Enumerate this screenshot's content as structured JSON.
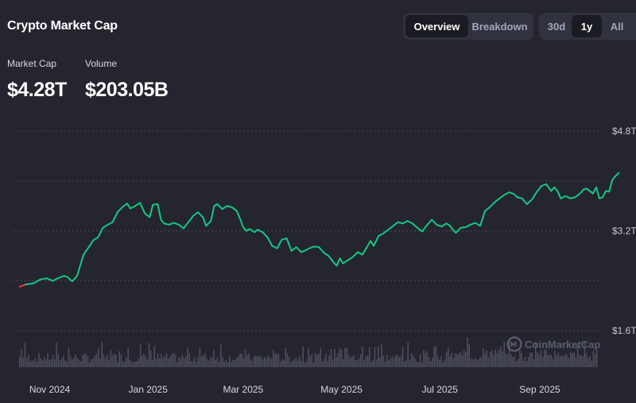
{
  "header": {
    "title": "Crypto Market Cap",
    "view_tabs": [
      {
        "label": "Overview",
        "active": true
      },
      {
        "label": "Breakdown",
        "active": false
      }
    ],
    "range_tabs": [
      {
        "label": "30d",
        "active": false
      },
      {
        "label": "1y",
        "active": true
      },
      {
        "label": "All",
        "active": false
      }
    ]
  },
  "stats": {
    "market_cap_label": "Market Cap",
    "market_cap_value": "$4.28T",
    "volume_label": "Volume",
    "volume_value": "$203.05B"
  },
  "watermark": "CoinMarketCap",
  "colors": {
    "background": "#24252f",
    "line": "#16c784",
    "line_start": "#ea3943",
    "volume": "#4b4e5b",
    "grid": "#4a4d5a",
    "watermark": "#5a5e6d"
  },
  "chart_data": {
    "type": "line",
    "title": "",
    "xlabel": "",
    "ylabel": "",
    "x_tick_labels": [
      "Nov 2024",
      "Jan 2025",
      "Mar 2025",
      "May 2025",
      "Jul 2025",
      "Sep 2025"
    ],
    "x_tick_dates": [
      "2024-11-01",
      "2025-01-01",
      "2025-03-01",
      "2025-05-01",
      "2025-07-01",
      "2025-09-01"
    ],
    "y_tick_labels": [
      "$4.8T",
      "$3.2T",
      "$1.6T"
    ],
    "y_tick_values": [
      4.8,
      3.2,
      1.6
    ],
    "ylim": [
      1.6,
      4.8
    ],
    "xlim": [
      "2024-10-13",
      "2025-10-07"
    ],
    "grid": true,
    "series": [
      {
        "unit": "trillion USD",
        "points": [
          [
            "2024-10-13",
            2.3
          ],
          [
            "2024-10-17",
            2.34
          ],
          [
            "2024-10-22",
            2.36
          ],
          [
            "2024-10-26",
            2.42
          ],
          [
            "2024-10-30",
            2.44
          ],
          [
            "2024-11-03",
            2.4
          ],
          [
            "2024-11-06",
            2.44
          ],
          [
            "2024-11-10",
            2.48
          ],
          [
            "2024-11-12",
            2.46
          ],
          [
            "2024-11-15",
            2.39
          ],
          [
            "2024-11-18",
            2.48
          ],
          [
            "2024-11-22",
            2.82
          ],
          [
            "2024-11-25",
            2.93
          ],
          [
            "2024-11-28",
            3.05
          ],
          [
            "2024-12-01",
            3.1
          ],
          [
            "2024-12-04",
            3.25
          ],
          [
            "2024-12-07",
            3.3
          ],
          [
            "2024-12-10",
            3.34
          ],
          [
            "2024-12-13",
            3.5
          ],
          [
            "2024-12-16",
            3.58
          ],
          [
            "2024-12-19",
            3.64
          ],
          [
            "2024-12-21",
            3.56
          ],
          [
            "2024-12-24",
            3.6
          ],
          [
            "2024-12-27",
            3.65
          ],
          [
            "2024-12-30",
            3.48
          ],
          [
            "2025-01-02",
            3.42
          ],
          [
            "2025-01-04",
            3.62
          ],
          [
            "2025-01-07",
            3.63
          ],
          [
            "2025-01-09",
            3.38
          ],
          [
            "2025-01-11",
            3.32
          ],
          [
            "2025-01-14",
            3.3
          ],
          [
            "2025-01-17",
            3.33
          ],
          [
            "2025-01-20",
            3.3
          ],
          [
            "2025-01-23",
            3.24
          ],
          [
            "2025-01-26",
            3.34
          ],
          [
            "2025-01-29",
            3.44
          ],
          [
            "2025-02-01",
            3.5
          ],
          [
            "2025-02-04",
            3.42
          ],
          [
            "2025-02-06",
            3.28
          ],
          [
            "2025-02-09",
            3.36
          ],
          [
            "2025-02-11",
            3.6
          ],
          [
            "2025-02-13",
            3.63
          ],
          [
            "2025-02-16",
            3.55
          ],
          [
            "2025-02-19",
            3.6
          ],
          [
            "2025-02-22",
            3.58
          ],
          [
            "2025-02-25",
            3.52
          ],
          [
            "2025-02-27",
            3.4
          ],
          [
            "2025-03-01",
            3.26
          ],
          [
            "2025-03-03",
            3.2
          ],
          [
            "2025-03-05",
            3.23
          ],
          [
            "2025-03-08",
            3.18
          ],
          [
            "2025-03-10",
            3.22
          ],
          [
            "2025-03-13",
            3.18
          ],
          [
            "2025-03-16",
            3.1
          ],
          [
            "2025-03-19",
            2.96
          ],
          [
            "2025-03-22",
            2.92
          ],
          [
            "2025-03-25",
            3.06
          ],
          [
            "2025-03-28",
            3.08
          ],
          [
            "2025-03-31",
            2.88
          ],
          [
            "2025-04-03",
            2.94
          ],
          [
            "2025-04-06",
            2.86
          ],
          [
            "2025-04-08",
            2.88
          ],
          [
            "2025-04-11",
            2.92
          ],
          [
            "2025-04-14",
            2.95
          ],
          [
            "2025-04-17",
            2.94
          ],
          [
            "2025-04-20",
            2.85
          ],
          [
            "2025-04-23",
            2.8
          ],
          [
            "2025-04-26",
            2.7
          ],
          [
            "2025-04-28",
            2.64
          ],
          [
            "2025-04-30",
            2.76
          ],
          [
            "2025-05-02",
            2.68
          ],
          [
            "2025-05-05",
            2.73
          ],
          [
            "2025-05-08",
            2.78
          ],
          [
            "2025-05-11",
            2.86
          ],
          [
            "2025-05-14",
            2.82
          ],
          [
            "2025-05-17",
            2.95
          ],
          [
            "2025-05-19",
            3.04
          ],
          [
            "2025-05-21",
            2.96
          ],
          [
            "2025-05-24",
            3.12
          ],
          [
            "2025-05-27",
            3.16
          ],
          [
            "2025-05-30",
            3.22
          ],
          [
            "2025-06-02",
            3.28
          ],
          [
            "2025-06-05",
            3.34
          ],
          [
            "2025-06-08",
            3.32
          ],
          [
            "2025-06-11",
            3.36
          ],
          [
            "2025-06-14",
            3.32
          ],
          [
            "2025-06-17",
            3.25
          ],
          [
            "2025-06-20",
            3.19
          ],
          [
            "2025-06-23",
            3.29
          ],
          [
            "2025-06-26",
            3.38
          ],
          [
            "2025-06-29",
            3.3
          ],
          [
            "2025-07-02",
            3.27
          ],
          [
            "2025-07-05",
            3.32
          ],
          [
            "2025-07-07",
            3.29
          ],
          [
            "2025-07-09",
            3.22
          ],
          [
            "2025-07-11",
            3.17
          ],
          [
            "2025-07-14",
            3.25
          ],
          [
            "2025-07-17",
            3.26
          ],
          [
            "2025-07-20",
            3.3
          ],
          [
            "2025-07-23",
            3.33
          ],
          [
            "2025-07-26",
            3.28
          ],
          [
            "2025-07-29",
            3.52
          ],
          [
            "2025-08-01",
            3.58
          ],
          [
            "2025-08-04",
            3.66
          ],
          [
            "2025-08-07",
            3.72
          ],
          [
            "2025-08-10",
            3.78
          ],
          [
            "2025-08-13",
            3.82
          ],
          [
            "2025-08-16",
            3.79
          ],
          [
            "2025-08-18",
            3.74
          ],
          [
            "2025-08-21",
            3.72
          ],
          [
            "2025-08-24",
            3.63
          ],
          [
            "2025-08-27",
            3.7
          ],
          [
            "2025-08-30",
            3.82
          ],
          [
            "2025-09-02",
            3.92
          ],
          [
            "2025-09-05",
            3.95
          ],
          [
            "2025-09-08",
            3.84
          ],
          [
            "2025-09-10",
            3.9
          ],
          [
            "2025-09-12",
            3.84
          ],
          [
            "2025-09-14",
            3.72
          ],
          [
            "2025-09-17",
            3.76
          ],
          [
            "2025-09-20",
            3.72
          ],
          [
            "2025-09-23",
            3.74
          ],
          [
            "2025-09-26",
            3.8
          ],
          [
            "2025-09-28",
            3.86
          ],
          [
            "2025-09-30",
            3.88
          ],
          [
            "2025-10-02",
            3.84
          ],
          [
            "2025-10-04",
            3.8
          ],
          [
            "2025-10-06",
            3.9
          ],
          [
            "2025-10-08",
            3.72
          ],
          [
            "2025-10-10",
            3.74
          ],
          [
            "2025-10-12",
            3.84
          ],
          [
            "2025-10-14",
            3.83
          ],
          [
            "2025-10-16",
            4.02
          ],
          [
            "2025-10-18",
            4.08
          ],
          [
            "2025-10-20",
            4.13
          ]
        ]
      }
    ]
  }
}
